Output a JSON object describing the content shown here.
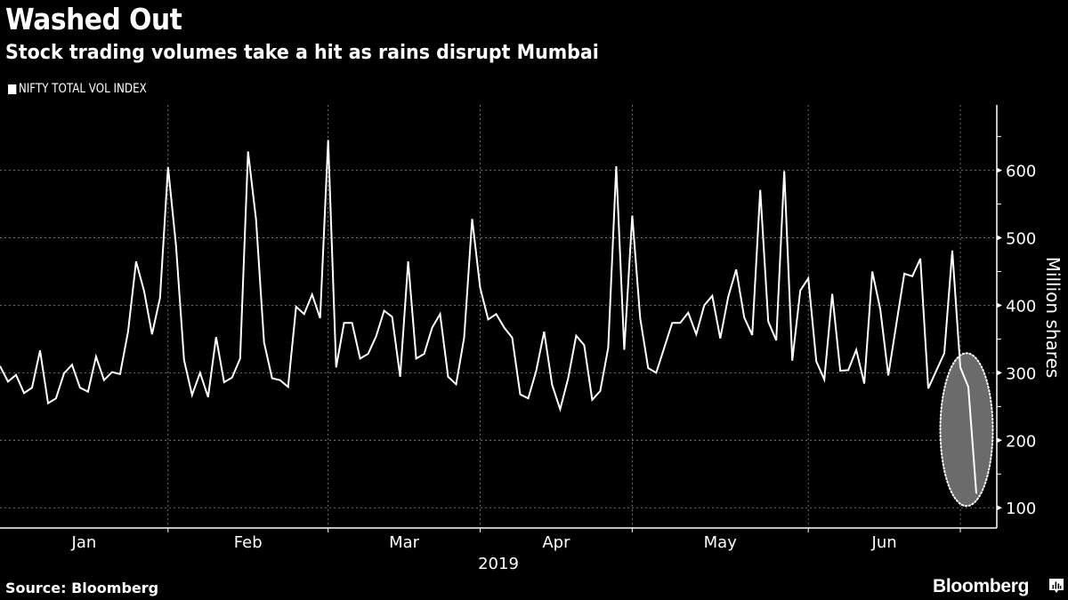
{
  "header": {
    "title": "Washed Out",
    "subtitle": "Stock trading volumes take a hit as rains disrupt Mumbai"
  },
  "legend": {
    "label": "NIFTY TOTAL VOL INDEX",
    "color": "#ffffff"
  },
  "footer": {
    "source": "Source: Bloomberg",
    "brand": "Bloomberg",
    "brand_icon": "bloomberg-chart-bubble-icon"
  },
  "colors": {
    "background": "#000000",
    "line": "#ffffff",
    "grid": "#8a8a8a",
    "highlight_fill": "#6b6b6b",
    "highlight_border": "#ffffff"
  },
  "chart_data": {
    "type": "line",
    "title": "Washed Out",
    "subtitle": "Stock trading volumes take a hit as rains disrupt Mumbai",
    "xlabel": "2019",
    "ylabel": "Million shares",
    "y_axis_side": "right",
    "ylim": [
      70,
      697
    ],
    "yticks": [
      100,
      200,
      300,
      400,
      500,
      600
    ],
    "y_minor_ticks": [
      150,
      250,
      350,
      450,
      550,
      650
    ],
    "grid": true,
    "legend_position": "top-left",
    "x_period_labels": [
      "Jan",
      "Feb",
      "Mar",
      "Apr",
      "May",
      "Jun"
    ],
    "x_year_label": "2019",
    "month_boundaries_index": [
      21,
      41,
      60,
      79,
      101,
      120
    ],
    "highlight": {
      "shape": "ellipse",
      "description": "Last three sessions circled",
      "from_index": 120,
      "to_index": 122
    },
    "series": [
      {
        "name": "NIFTY TOTAL VOL INDEX",
        "values": [
          310,
          287,
          297,
          270,
          278,
          333,
          255,
          262,
          299,
          312,
          278,
          272,
          324,
          289,
          301,
          298,
          361,
          465,
          421,
          357,
          411,
          605,
          488,
          319,
          267,
          300,
          264,
          353,
          286,
          293,
          321,
          628,
          527,
          345,
          292,
          289,
          279,
          398,
          387,
          416,
          381,
          645,
          308,
          374,
          374,
          321,
          328,
          354,
          392,
          383,
          294,
          465,
          321,
          328,
          367,
          387,
          294,
          283,
          352,
          528,
          426,
          379,
          387,
          367,
          352,
          268,
          262,
          303,
          361,
          282,
          246,
          292,
          355,
          341,
          260,
          273,
          337,
          606,
          334,
          533,
          381,
          307,
          300,
          337,
          374,
          374,
          389,
          357,
          400,
          414,
          351,
          413,
          453,
          382,
          356,
          571,
          376,
          348,
          599,
          318,
          422,
          440,
          317,
          290,
          417,
          303,
          304,
          334,
          284,
          450,
          394,
          296,
          372,
          447,
          443,
          469,
          277,
          303,
          329,
          481,
          308,
          279,
          121
        ]
      }
    ]
  }
}
